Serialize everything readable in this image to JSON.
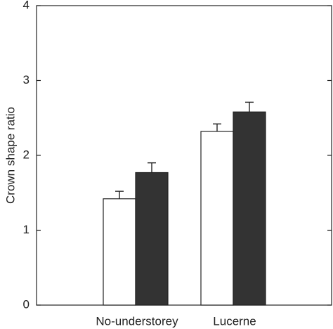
{
  "chart_data": {
    "type": "bar",
    "y_label": "Crown shape ratio",
    "categories": [
      "No-understorey",
      "Lucerne"
    ],
    "series": [
      {
        "color": "#ffffff",
        "values": [
          1.42,
          2.32
        ],
        "errors": [
          0.1,
          0.1
        ]
      },
      {
        "color": "#333333",
        "values": [
          1.77,
          2.58
        ],
        "errors": [
          0.13,
          0.13
        ]
      }
    ],
    "ylim": [
      0,
      4
    ],
    "yticks": [
      0,
      1,
      2,
      3,
      4
    ]
  }
}
